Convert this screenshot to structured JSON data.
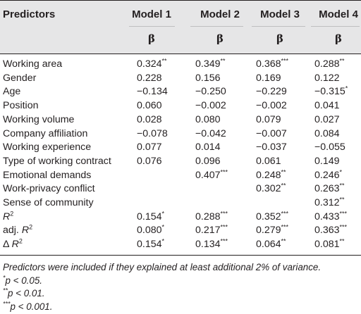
{
  "header": {
    "predictors_label": "Predictors",
    "models": [
      "Model 1",
      "Model 2",
      "Model 3",
      "Model 4"
    ],
    "beta_symbol": "β"
  },
  "rows": [
    {
      "label": "Working area",
      "values": [
        "0.324**",
        "0.349**",
        "0.368***",
        "0.288**"
      ]
    },
    {
      "label": "Gender",
      "values": [
        "0.228",
        "0.156",
        "0.169",
        "0.122"
      ]
    },
    {
      "label": "Age",
      "values": [
        "−0.134",
        "−0.250",
        "−0.229",
        "−0.315*"
      ]
    },
    {
      "label": "Position",
      "values": [
        "0.060",
        "−0.002",
        "−0.002",
        "0.041"
      ]
    },
    {
      "label": "Working volume",
      "values": [
        "0.028",
        "0.080",
        "0.079",
        "0.027"
      ]
    },
    {
      "label": "Company affiliation",
      "values": [
        "−0.078",
        "−0.042",
        "−0.007",
        "0.084"
      ]
    },
    {
      "label": "Working experience",
      "values": [
        "0.077",
        "0.014",
        "−0.037",
        "−0.055"
      ]
    },
    {
      "label": "Type of working contract",
      "values": [
        "0.076",
        "0.096",
        "0.061",
        "0.149"
      ]
    },
    {
      "label": "Emotional demands",
      "values": [
        "",
        "0.407***",
        "0.248**",
        "0.246*"
      ]
    },
    {
      "label": "Work-privacy conflict",
      "values": [
        "",
        "",
        "0.302**",
        "0.263**"
      ]
    },
    {
      "label": "Sense of community",
      "values": [
        "",
        "",
        "",
        "0.312**"
      ]
    },
    {
      "label": "R2",
      "values": [
        "0.154*",
        "0.288***",
        "0.352***",
        "0.433***"
      ]
    },
    {
      "label": "adj. R2",
      "values": [
        "0.080*",
        "0.217***",
        "0.279***",
        "0.363***"
      ]
    },
    {
      "label": "Δ R2",
      "values": [
        "0.154*",
        "0.134***",
        "0.064**",
        "0.081**"
      ]
    }
  ],
  "notes": [
    "Predictors were included if they explained at least additional 2% of variance.",
    "*p < 0.05.",
    "**p < 0.01.",
    "***p < 0.001."
  ]
}
